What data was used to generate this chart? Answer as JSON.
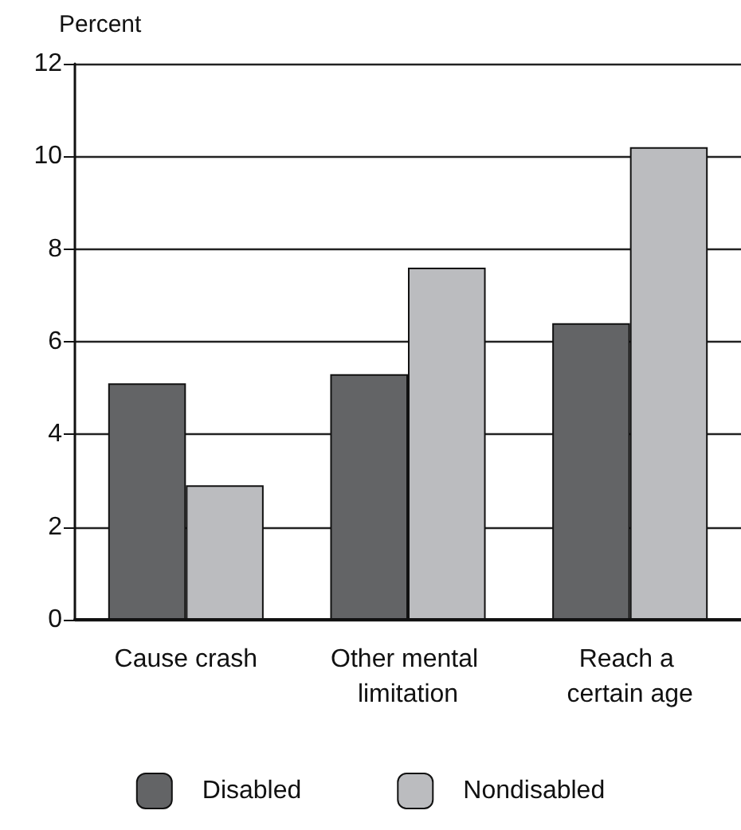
{
  "chart_data": {
    "type": "bar",
    "ylabel": "Percent",
    "categories": [
      "Cause crash",
      "Other mental limitation",
      "Reach a certain age"
    ],
    "series": [
      {
        "name": "Disabled",
        "color": "#636466",
        "values": [
          5.1,
          5.3,
          6.4
        ]
      },
      {
        "name": "Nondisabled",
        "color": "#bbbcbf",
        "values": [
          2.9,
          7.6,
          10.2
        ]
      }
    ],
    "ylim": [
      0,
      12
    ],
    "yticks": [
      0,
      2,
      4,
      6,
      8,
      10,
      12
    ],
    "grid": "y",
    "legend": "bottom"
  }
}
